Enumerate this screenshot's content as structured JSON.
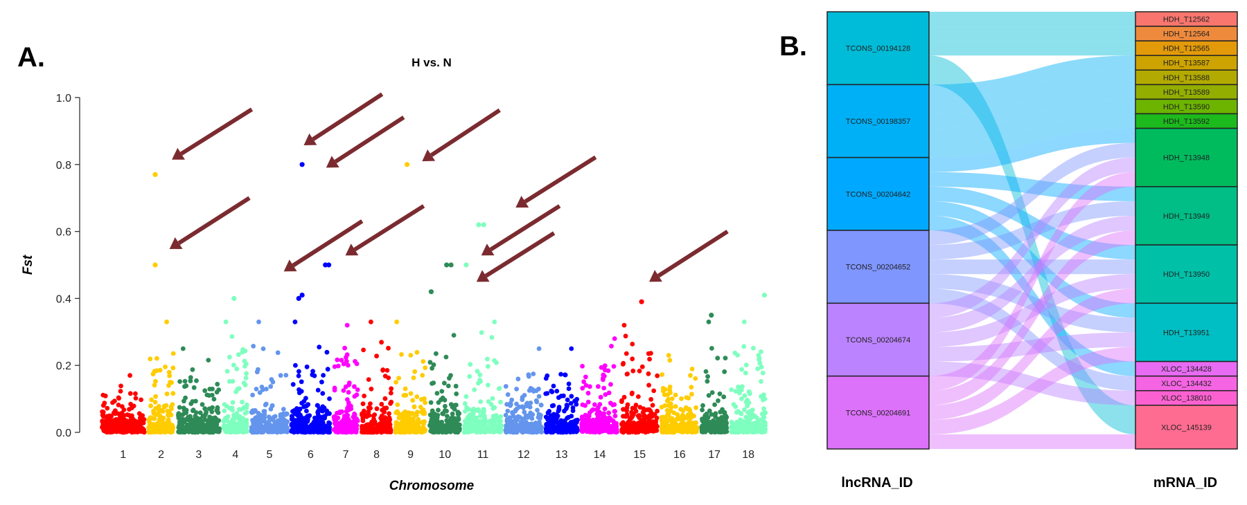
{
  "panel_a_label": "A.",
  "panel_b_label": "B.",
  "chart_data": [
    {
      "type": "scatter",
      "subtype": "manhattan",
      "title": "H vs. N",
      "xlabel": "Chromosome",
      "ylabel": "Fst",
      "ylim": [
        0,
        1.0
      ],
      "yticks": [
        "0.0",
        "0.2",
        "0.4",
        "0.6",
        "0.8",
        "1.0"
      ],
      "categories": [
        "1",
        "2",
        "3",
        "4",
        "5",
        "6",
        "7",
        "8",
        "9",
        "10",
        "11",
        "12",
        "13",
        "14",
        "15",
        "16",
        "17",
        "18"
      ],
      "colors": [
        "#ff0000",
        "#ffcc00",
        "#2e8b57",
        "#7fffbf",
        "#6495ed",
        "#0000ff",
        "#ff00ff",
        "#ff0000",
        "#ffcc00",
        "#2e8b57",
        "#7fffbf",
        "#6495ed",
        "#0000ff",
        "#ff00ff",
        "#ff0000",
        "#ffcc00",
        "#2e8b57",
        "#7fffbf"
      ],
      "background_max_fst": [
        0.17,
        0.33,
        0.25,
        0.33,
        0.33,
        0.33,
        0.32,
        0.33,
        0.33,
        0.29,
        0.33,
        0.25,
        0.25,
        0.28,
        0.32,
        0.23,
        0.33,
        0.33
      ],
      "notable_points": [
        {
          "chromosome": "2",
          "fst": 0.77
        },
        {
          "chromosome": "2",
          "fst": 0.5
        },
        {
          "chromosome": "4",
          "fst": 0.4
        },
        {
          "chromosome": "6",
          "fst": 0.8
        },
        {
          "chromosome": "6",
          "fst": 0.5
        },
        {
          "chromosome": "6",
          "fst": 0.5
        },
        {
          "chromosome": "6",
          "fst": 0.41
        },
        {
          "chromosome": "6",
          "fst": 0.4
        },
        {
          "chromosome": "9",
          "fst": 0.8
        },
        {
          "chromosome": "10",
          "fst": 0.5
        },
        {
          "chromosome": "10",
          "fst": 0.5
        },
        {
          "chromosome": "10",
          "fst": 0.42
        },
        {
          "chromosome": "11",
          "fst": 0.62
        },
        {
          "chromosome": "11",
          "fst": 0.62
        },
        {
          "chromosome": "11",
          "fst": 0.5
        },
        {
          "chromosome": "15",
          "fst": 0.39
        },
        {
          "chromosome": "17",
          "fst": 0.35
        },
        {
          "chromosome": "18",
          "fst": 0.41
        }
      ],
      "annotation_arrow_color": "#7b2b30",
      "grid": false
    },
    {
      "type": "sankey",
      "left_axis_label": "lncRNA_ID",
      "right_axis_label": "mRNA_ID",
      "left_nodes": [
        {
          "name": "TCONS_00194128",
          "color": "#00bcd8"
        },
        {
          "name": "TCONS_00198357",
          "color": "#00b0f6"
        },
        {
          "name": "TCONS_00204642",
          "color": "#00a9ff"
        },
        {
          "name": "TCONS_00204652",
          "color": "#7f96ff"
        },
        {
          "name": "TCONS_00204674",
          "color": "#bb83ff"
        },
        {
          "name": "TCONS_00204691",
          "color": "#dc71fa"
        }
      ],
      "right_nodes": [
        {
          "name": "HDH_T12562",
          "color": "#f8766d"
        },
        {
          "name": "HDH_T12564",
          "color": "#ee8a3c"
        },
        {
          "name": "HDH_T12565",
          "color": "#e39a0a"
        },
        {
          "name": "HDH_T13587",
          "color": "#cca300"
        },
        {
          "name": "HDH_T13588",
          "color": "#b2aa00"
        },
        {
          "name": "HDH_T13589",
          "color": "#94ae00"
        },
        {
          "name": "HDH_T13590",
          "color": "#6cb400"
        },
        {
          "name": "HDH_T13592",
          "color": "#1cba1c"
        },
        {
          "name": "HDH_T13948",
          "color": "#00bb5e"
        },
        {
          "name": "HDH_T13949",
          "color": "#00be86"
        },
        {
          "name": "HDH_T13950",
          "color": "#00c0a8"
        },
        {
          "name": "HDH_T13951",
          "color": "#00bfc4"
        },
        {
          "name": "XLOC_134428",
          "color": "#e76bf3"
        },
        {
          "name": "XLOC_134432",
          "color": "#f564e3"
        },
        {
          "name": "XLOC_138010",
          "color": "#fd61d1"
        },
        {
          "name": "XLOC_145139",
          "color": "#ff6c91"
        }
      ],
      "links": [
        {
          "source": "TCONS_00194128",
          "target": "HDH_T12562",
          "value": 1
        },
        {
          "source": "TCONS_00194128",
          "target": "HDH_T12564",
          "value": 1
        },
        {
          "source": "TCONS_00194128",
          "target": "HDH_T12565",
          "value": 1
        },
        {
          "source": "TCONS_00194128",
          "target": "XLOC_145139",
          "value": 2
        },
        {
          "source": "TCONS_00198357",
          "target": "HDH_T13587",
          "value": 1
        },
        {
          "source": "TCONS_00198357",
          "target": "HDH_T13588",
          "value": 1
        },
        {
          "source": "TCONS_00198357",
          "target": "HDH_T13589",
          "value": 1
        },
        {
          "source": "TCONS_00198357",
          "target": "HDH_T13590",
          "value": 1
        },
        {
          "source": "TCONS_00198357",
          "target": "HDH_T13592",
          "value": 1
        },
        {
          "source": "TCONS_00204642",
          "target": "HDH_T13948",
          "value": 1
        },
        {
          "source": "TCONS_00204642",
          "target": "HDH_T13949",
          "value": 1
        },
        {
          "source": "TCONS_00204642",
          "target": "HDH_T13950",
          "value": 1
        },
        {
          "source": "TCONS_00204642",
          "target": "HDH_T13951",
          "value": 1
        },
        {
          "source": "TCONS_00204642",
          "target": "XLOC_134428",
          "value": 1
        },
        {
          "source": "TCONS_00204652",
          "target": "HDH_T13948",
          "value": 1
        },
        {
          "source": "TCONS_00204652",
          "target": "HDH_T13949",
          "value": 1
        },
        {
          "source": "TCONS_00204652",
          "target": "HDH_T13950",
          "value": 1
        },
        {
          "source": "TCONS_00204652",
          "target": "HDH_T13951",
          "value": 1
        },
        {
          "source": "TCONS_00204652",
          "target": "XLOC_134432",
          "value": 1
        },
        {
          "source": "TCONS_00204674",
          "target": "HDH_T13948",
          "value": 1
        },
        {
          "source": "TCONS_00204674",
          "target": "HDH_T13949",
          "value": 1
        },
        {
          "source": "TCONS_00204674",
          "target": "HDH_T13950",
          "value": 1
        },
        {
          "source": "TCONS_00204674",
          "target": "HDH_T13951",
          "value": 1
        },
        {
          "source": "TCONS_00204674",
          "target": "XLOC_138010",
          "value": 1
        },
        {
          "source": "TCONS_00204691",
          "target": "HDH_T13948",
          "value": 1
        },
        {
          "source": "TCONS_00204691",
          "target": "HDH_T13949",
          "value": 1
        },
        {
          "source": "TCONS_00204691",
          "target": "HDH_T13950",
          "value": 1
        },
        {
          "source": "TCONS_00204691",
          "target": "HDH_T13951",
          "value": 1
        },
        {
          "source": "TCONS_00204691",
          "target": "XLOC_145139",
          "value": 1
        }
      ]
    }
  ]
}
